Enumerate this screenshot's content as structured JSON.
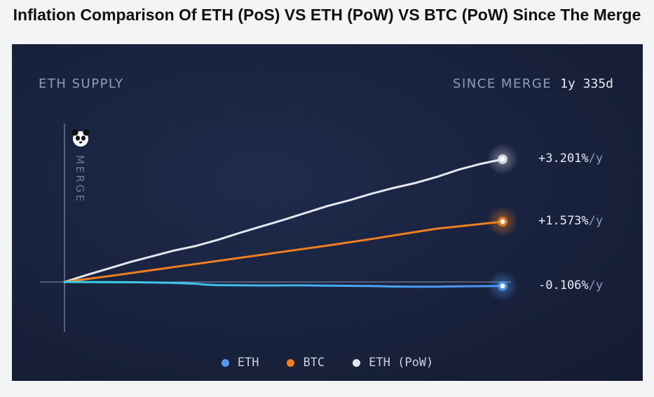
{
  "page": {
    "title": "Inflation Comparison Of ETH (PoS) VS ETH (PoW) VS  BTC (PoW) Since The Merge"
  },
  "card": {
    "left_label": "ETH SUPPLY",
    "right_label": "SINCE MERGE",
    "elapsed": "1y 335d",
    "merge_label": "MERGE",
    "logo_icon": "panda-icon"
  },
  "chart_data": {
    "type": "line",
    "title": "Inflation Comparison Of ETH (PoS) VS ETH (PoW) VS  BTC (PoW) Since The Merge",
    "xlabel": "",
    "ylabel": "",
    "grid": false,
    "legend_position": "bottom-center",
    "series": [
      {
        "name": "ETH",
        "color": "#4f9bf5",
        "end_label": "-0.106%",
        "end_unit": "/y",
        "end_value": -0.106,
        "x": [
          0,
          0.05,
          0.1,
          0.15,
          0.2,
          0.25,
          0.3,
          0.32,
          0.35,
          0.4,
          0.45,
          0.5,
          0.55,
          0.6,
          0.65,
          0.7,
          0.75,
          0.8,
          0.85,
          0.9,
          0.95,
          1.0
        ],
        "y": [
          0,
          -0.002,
          -0.004,
          -0.008,
          -0.015,
          -0.025,
          -0.045,
          -0.07,
          -0.082,
          -0.088,
          -0.091,
          -0.089,
          -0.09,
          -0.095,
          -0.1,
          -0.107,
          -0.118,
          -0.125,
          -0.122,
          -0.115,
          -0.11,
          -0.106
        ]
      },
      {
        "name": "BTC",
        "color": "#f07f1e",
        "end_label": "+1.573%",
        "end_unit": "/y",
        "end_value": 1.573,
        "x": [
          0,
          0.1,
          0.2,
          0.3,
          0.4,
          0.5,
          0.6,
          0.7,
          0.8,
          0.85,
          0.9,
          0.95,
          1.0
        ],
        "y": [
          0,
          0.15,
          0.31,
          0.47,
          0.63,
          0.79,
          0.95,
          1.12,
          1.3,
          1.39,
          1.45,
          1.51,
          1.573
        ]
      },
      {
        "name": "ETH (PoW)",
        "color": "#e4e6f0",
        "end_label": "+3.201%",
        "end_unit": "/y",
        "end_value": 3.201,
        "x": [
          0,
          0.05,
          0.1,
          0.15,
          0.2,
          0.25,
          0.3,
          0.35,
          0.4,
          0.45,
          0.5,
          0.55,
          0.6,
          0.65,
          0.7,
          0.75,
          0.8,
          0.85,
          0.9,
          0.95,
          1.0
        ],
        "y": [
          0,
          0.18,
          0.35,
          0.52,
          0.67,
          0.82,
          0.94,
          1.1,
          1.28,
          1.45,
          1.62,
          1.8,
          1.98,
          2.13,
          2.3,
          2.45,
          2.58,
          2.74,
          2.93,
          3.08,
          3.201
        ]
      }
    ]
  }
}
